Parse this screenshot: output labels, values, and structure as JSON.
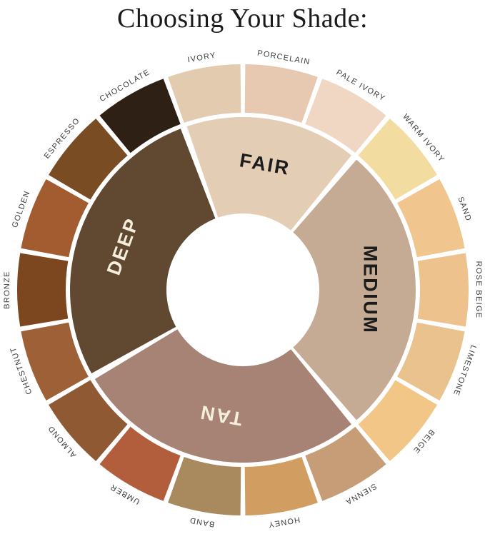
{
  "title": "Choosing Your Shade:",
  "wheel": {
    "background": "#ffffff",
    "shade_label_color": "#3b3b3b",
    "categories": [
      {
        "name": "FAIR",
        "start": 340,
        "end": 400,
        "color": "#e3cdb5",
        "text_color": "#1c1c1c"
      },
      {
        "name": "MEDIUM",
        "start": 40,
        "end": 140,
        "color": "#c5aa94",
        "text_color": "#1c1c1c"
      },
      {
        "name": "TAN",
        "start": 140,
        "end": 240,
        "color": "#a68375",
        "text_color": "#f6eedd"
      },
      {
        "name": "DEEP",
        "start": 240,
        "end": 340,
        "color": "#614931",
        "text_color": "#f6eedd"
      }
    ],
    "shades": [
      {
        "name": "PORCELAIN",
        "color": "#e6c9b0"
      },
      {
        "name": "PALE IVORY",
        "color": "#f0d7c3"
      },
      {
        "name": "WARM IVORY",
        "color": "#f2dc9f"
      },
      {
        "name": "SAND",
        "color": "#f0c68e"
      },
      {
        "name": "ROSE BEIGE",
        "color": "#edc28c"
      },
      {
        "name": "LIMESTONE",
        "color": "#eac28e"
      },
      {
        "name": "BEIGE",
        "color": "#f1c686"
      },
      {
        "name": "SIENNA",
        "color": "#c79d77"
      },
      {
        "name": "HONEY",
        "color": "#d19d60"
      },
      {
        "name": "BAND",
        "color": "#a98a5f"
      },
      {
        "name": "UMBER",
        "color": "#b25e3c"
      },
      {
        "name": "ALMOND",
        "color": "#8e5933"
      },
      {
        "name": "CHESTNUT",
        "color": "#9d6037"
      },
      {
        "name": "BRONZE",
        "color": "#7c471f"
      },
      {
        "name": "GOLDEN",
        "color": "#a25c30"
      },
      {
        "name": "ESPRESSO",
        "color": "#7a4c24"
      },
      {
        "name": "CHOCOLATE",
        "color": "#2e2015"
      },
      {
        "name": "IVORY",
        "color": "#e2cbae"
      }
    ]
  }
}
